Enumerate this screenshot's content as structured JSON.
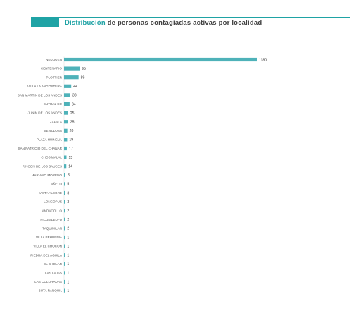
{
  "header": {
    "title_highlight": "Distribución",
    "title_rest": " de personas contagiadas activas por localidad"
  },
  "colors": {
    "accent": "#1fa3a5",
    "bar": "#4eb2b9",
    "title_text": "#404040"
  },
  "chart_data": {
    "type": "bar",
    "orientation": "horizontal",
    "title": "Distribución de personas contagiadas activas por localidad",
    "xlabel": "",
    "ylabel": "",
    "grid": false,
    "legend": "none",
    "xlim": [
      0,
      1180
    ],
    "categories": [
      "NEUQUEN",
      "CENTENARIO",
      "PLOTTIER",
      "VILLA LA ANGOSTURA",
      "SAN MARTIN DE LOS ANDES",
      "CUTRAL CO",
      "JUNIN DE LOS ANDES",
      "ZAPALA",
      "SENILLOSA",
      "PLAZA HUINCUL",
      "SAN PATRICIO DEL CHAÑAR",
      "CHOS MALAL",
      "RINCON DE LOS SAUCES",
      "MARIANO MORENO",
      "AÑELO",
      "VISTA ALEGRE",
      "LONCOPUE",
      "ANDACOLLO",
      "PICUN LEUFU",
      "TAQUIMILAN",
      "VILLA PEHUENIA",
      "VILLA EL CHOCON",
      "PIEDRA DEL AGUILA",
      "EL CHOLAR",
      "LAS LAJAS",
      "LAS COLORADAS",
      "BUTA RANQUIL"
    ],
    "values": [
      1180,
      95,
      89,
      44,
      38,
      34,
      25,
      25,
      20,
      19,
      17,
      15,
      14,
      8,
      5,
      3,
      3,
      2,
      2,
      2,
      1,
      1,
      1,
      1,
      1,
      1,
      1
    ]
  }
}
